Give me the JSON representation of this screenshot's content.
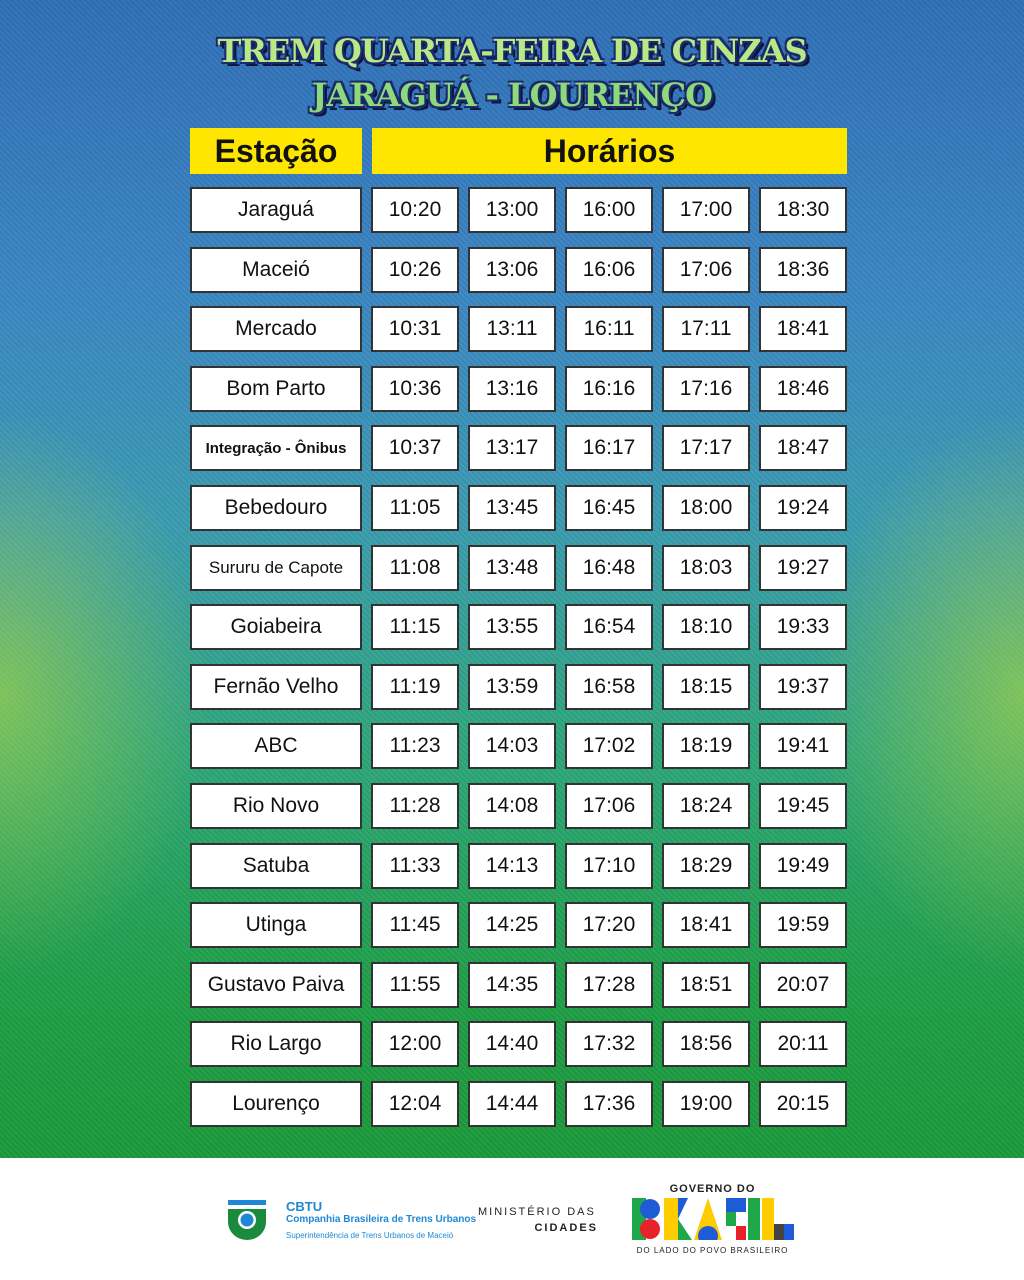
{
  "title": {
    "line1": "TREM QUARTA-FEIRA DE CINZAS",
    "line2": "JARAGUÁ - LOURENÇO"
  },
  "headers": {
    "station": "Estação",
    "times": "Horários"
  },
  "colors": {
    "header_yellow": "#ffe600",
    "title_green": "#b8e986",
    "cbtu_blue": "#1e88d6",
    "cbtu_green": "#1a8a3c"
  },
  "rows": [
    {
      "station": "Jaraguá",
      "times": [
        "10:20",
        "13:00",
        "16:00",
        "17:00",
        "18:30"
      ]
    },
    {
      "station": "Maceió",
      "times": [
        "10:26",
        "13:06",
        "16:06",
        "17:06",
        "18:36"
      ]
    },
    {
      "station": "Mercado",
      "times": [
        "10:31",
        "13:11",
        "16:11",
        "17:11",
        "18:41"
      ]
    },
    {
      "station": "Bom Parto",
      "times": [
        "10:36",
        "13:16",
        "16:16",
        "17:16",
        "18:46"
      ]
    },
    {
      "station": "Integração - Ônibus",
      "times": [
        "10:37",
        "13:17",
        "16:17",
        "17:17",
        "18:47"
      ]
    },
    {
      "station": "Bebedouro",
      "times": [
        "11:05",
        "13:45",
        "16:45",
        "18:00",
        "19:24"
      ]
    },
    {
      "station": "Sururu de Capote",
      "times": [
        "11:08",
        "13:48",
        "16:48",
        "18:03",
        "19:27"
      ]
    },
    {
      "station": "Goiabeira",
      "times": [
        "11:15",
        "13:55",
        "16:54",
        "18:10",
        "19:33"
      ]
    },
    {
      "station": "Fernão Velho",
      "times": [
        "11:19",
        "13:59",
        "16:58",
        "18:15",
        "19:37"
      ]
    },
    {
      "station": "ABC",
      "times": [
        "11:23",
        "14:03",
        "17:02",
        "18:19",
        "19:41"
      ]
    },
    {
      "station": "Rio Novo",
      "times": [
        "11:28",
        "14:08",
        "17:06",
        "18:24",
        "19:45"
      ]
    },
    {
      "station": "Satuba",
      "times": [
        "11:33",
        "14:13",
        "17:10",
        "18:29",
        "19:49"
      ]
    },
    {
      "station": "Utinga",
      "times": [
        "11:45",
        "14:25",
        "17:20",
        "18:41",
        "19:59"
      ]
    },
    {
      "station": "Gustavo Paiva",
      "times": [
        "11:55",
        "14:35",
        "17:28",
        "18:51",
        "20:07"
      ]
    },
    {
      "station": "Rio Largo",
      "times": [
        "12:00",
        "14:40",
        "17:32",
        "18:56",
        "20:11"
      ]
    },
    {
      "station": "Lourenço",
      "times": [
        "12:04",
        "14:44",
        "17:36",
        "19:00",
        "20:15"
      ]
    }
  ],
  "footer": {
    "cbtu": {
      "abbr": "CBTU",
      "name": "Companhia Brasileira de Trens Urbanos",
      "sub": "Superintendência de Trens Urbanos de Maceió"
    },
    "ministry": {
      "line1": "MINISTÉRIO DAS",
      "line2": "CIDADES"
    },
    "gov": {
      "top": "GOVERNO DO",
      "logo": "BRASIL",
      "bottom": "DO LADO DO POVO BRASILEIRO"
    }
  }
}
